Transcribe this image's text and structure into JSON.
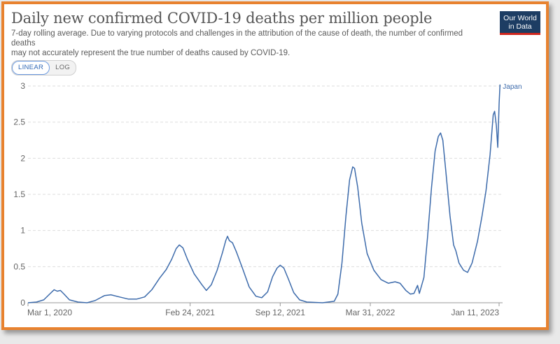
{
  "header": {
    "title": "Daily new confirmed COVID-19 deaths per million people",
    "subtitle_line1": "7-day rolling average. Due to varying protocols and challenges in the attribution of the cause of death, the number of confirmed deaths",
    "subtitle_line2": "may not accurately represent the true number of deaths caused by COVID-19.",
    "logo_line1": "Our World",
    "logo_line2": "in Data"
  },
  "scale_toggle": {
    "linear_label": "LINEAR",
    "log_label": "LOG",
    "selected": "LINEAR"
  },
  "colors": {
    "series": "#3d6bab",
    "frame": "#e8822f",
    "logo_bg": "#1d3d63",
    "logo_accent": "#ce261e"
  },
  "chart_data": {
    "type": "line",
    "ylim": [
      0,
      3
    ],
    "yticks": [
      {
        "value": 0,
        "label": "0"
      },
      {
        "value": 0.5,
        "label": "0.5"
      },
      {
        "value": 1,
        "label": "1"
      },
      {
        "value": 1.5,
        "label": "1.5"
      },
      {
        "value": 2,
        "label": "2"
      },
      {
        "value": 2.5,
        "label": "2.5"
      },
      {
        "value": 3,
        "label": "3"
      }
    ],
    "xlim": [
      "2020-03-01",
      "2023-01-11"
    ],
    "xticks": [
      {
        "date": "2020-03-01",
        "label": "Mar 1, 2020"
      },
      {
        "date": "2021-02-24",
        "label": "Feb 24, 2021"
      },
      {
        "date": "2021-09-12",
        "label": "Sep 12, 2021"
      },
      {
        "date": "2022-03-31",
        "label": "Mar 31, 2022"
      },
      {
        "date": "2023-01-11",
        "label": "Jan 11, 2023"
      }
    ],
    "grid": "horizontal dashed",
    "series": [
      {
        "name": "Japan",
        "points": [
          [
            "2020-03-01",
            0.0
          ],
          [
            "2020-03-20",
            0.01
          ],
          [
            "2020-04-05",
            0.04
          ],
          [
            "2020-04-18",
            0.12
          ],
          [
            "2020-04-28",
            0.18
          ],
          [
            "2020-05-05",
            0.16
          ],
          [
            "2020-05-12",
            0.17
          ],
          [
            "2020-05-20",
            0.12
          ],
          [
            "2020-06-01",
            0.04
          ],
          [
            "2020-06-20",
            0.01
          ],
          [
            "2020-07-10",
            0.0
          ],
          [
            "2020-07-28",
            0.03
          ],
          [
            "2020-08-18",
            0.1
          ],
          [
            "2020-09-01",
            0.11
          ],
          [
            "2020-09-20",
            0.08
          ],
          [
            "2020-10-10",
            0.05
          ],
          [
            "2020-10-28",
            0.05
          ],
          [
            "2020-11-15",
            0.08
          ],
          [
            "2020-12-01",
            0.18
          ],
          [
            "2020-12-18",
            0.34
          ],
          [
            "2021-01-02",
            0.46
          ],
          [
            "2021-01-14",
            0.6
          ],
          [
            "2021-01-24",
            0.75
          ],
          [
            "2021-01-31",
            0.8
          ],
          [
            "2021-02-08",
            0.76
          ],
          [
            "2021-02-18",
            0.6
          ],
          [
            "2021-03-05",
            0.4
          ],
          [
            "2021-03-22",
            0.25
          ],
          [
            "2021-04-01",
            0.17
          ],
          [
            "2021-04-12",
            0.25
          ],
          [
            "2021-04-25",
            0.45
          ],
          [
            "2021-05-07",
            0.7
          ],
          [
            "2021-05-14",
            0.86
          ],
          [
            "2021-05-18",
            0.92
          ],
          [
            "2021-05-22",
            0.86
          ],
          [
            "2021-05-29",
            0.83
          ],
          [
            "2021-06-07",
            0.7
          ],
          [
            "2021-06-20",
            0.48
          ],
          [
            "2021-07-05",
            0.22
          ],
          [
            "2021-07-20",
            0.09
          ],
          [
            "2021-08-02",
            0.07
          ],
          [
            "2021-08-15",
            0.15
          ],
          [
            "2021-08-26",
            0.36
          ],
          [
            "2021-09-05",
            0.48
          ],
          [
            "2021-09-12",
            0.52
          ],
          [
            "2021-09-20",
            0.48
          ],
          [
            "2021-09-30",
            0.33
          ],
          [
            "2021-10-12",
            0.14
          ],
          [
            "2021-10-25",
            0.04
          ],
          [
            "2021-11-10",
            0.01
          ],
          [
            "2021-12-15",
            0.0
          ],
          [
            "2022-01-10",
            0.02
          ],
          [
            "2022-01-18",
            0.12
          ],
          [
            "2022-01-27",
            0.55
          ],
          [
            "2022-02-05",
            1.2
          ],
          [
            "2022-02-13",
            1.7
          ],
          [
            "2022-02-20",
            1.88
          ],
          [
            "2022-02-24",
            1.86
          ],
          [
            "2022-03-03",
            1.6
          ],
          [
            "2022-03-12",
            1.1
          ],
          [
            "2022-03-24",
            0.68
          ],
          [
            "2022-04-08",
            0.45
          ],
          [
            "2022-04-24",
            0.32
          ],
          [
            "2022-05-10",
            0.27
          ],
          [
            "2022-05-25",
            0.29
          ],
          [
            "2022-06-05",
            0.27
          ],
          [
            "2022-06-18",
            0.17
          ],
          [
            "2022-06-28",
            0.12
          ],
          [
            "2022-07-06",
            0.13
          ],
          [
            "2022-07-14",
            0.24
          ],
          [
            "2022-07-18",
            0.13
          ],
          [
            "2022-07-28",
            0.35
          ],
          [
            "2022-08-05",
            0.9
          ],
          [
            "2022-08-14",
            1.6
          ],
          [
            "2022-08-22",
            2.1
          ],
          [
            "2022-08-29",
            2.3
          ],
          [
            "2022-09-03",
            2.35
          ],
          [
            "2022-09-08",
            2.25
          ],
          [
            "2022-09-15",
            1.8
          ],
          [
            "2022-09-24",
            1.2
          ],
          [
            "2022-10-02",
            0.8
          ],
          [
            "2022-10-07",
            0.72
          ],
          [
            "2022-10-14",
            0.55
          ],
          [
            "2022-10-24",
            0.45
          ],
          [
            "2022-11-02",
            0.42
          ],
          [
            "2022-11-12",
            0.55
          ],
          [
            "2022-11-24",
            0.85
          ],
          [
            "2022-12-04",
            1.2
          ],
          [
            "2022-12-13",
            1.55
          ],
          [
            "2022-12-22",
            2.05
          ],
          [
            "2022-12-29",
            2.6
          ],
          [
            "2023-01-01",
            2.65
          ],
          [
            "2023-01-05",
            2.45
          ],
          [
            "2023-01-08",
            2.15
          ],
          [
            "2023-01-11",
            2.75
          ],
          [
            "2023-01-13",
            3.02
          ]
        ]
      }
    ]
  }
}
